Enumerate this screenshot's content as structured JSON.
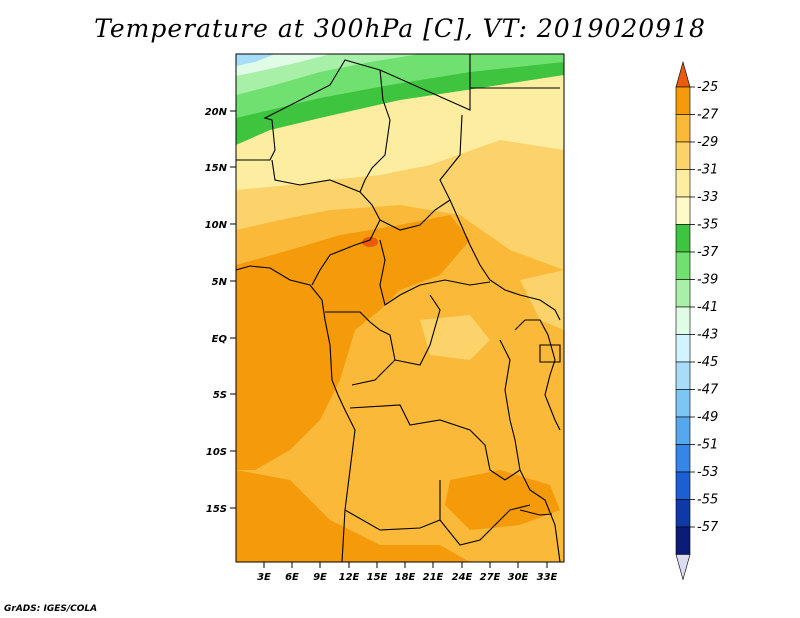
{
  "title": "Temperature at 300hPa [C], VT: 2019020918",
  "credit": "GrADS: IGES/COLA",
  "lat_ticks": [
    "20N",
    "15N",
    "10N",
    "5N",
    "EQ",
    "5S",
    "10S",
    "15S"
  ],
  "lon_ticks": [
    "3E",
    "6E",
    "9E",
    "12E",
    "15E",
    "18E",
    "21E",
    "24E",
    "27E",
    "30E",
    "33E"
  ],
  "colorbar": {
    "labels": [
      "-25",
      "-27",
      "-29",
      "-31",
      "-33",
      "-35",
      "-37",
      "-39",
      "-41",
      "-43",
      "-45",
      "-47",
      "-49",
      "-51",
      "-53",
      "-55",
      "-57"
    ],
    "colors": [
      "#e85a0c",
      "#f59a0a",
      "#fbb93a",
      "#fbd36a",
      "#fdeda0",
      "#fffac6",
      "#3ec43e",
      "#70e070",
      "#a8f0a8",
      "#e0fbe6",
      "#d2f4ff",
      "#a7ddf8",
      "#7cc6f4",
      "#55a8ee",
      "#3586e6",
      "#1b5fd2",
      "#0e3aa8",
      "#0a1c75",
      "#dcdcf2"
    ]
  }
}
